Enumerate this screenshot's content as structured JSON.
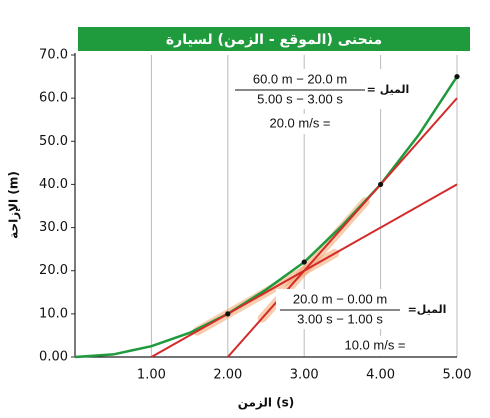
{
  "chart_data": {
    "type": "line",
    "title": "منحنى (الموقع - الزمن) لسيارة",
    "x_label": "الزمن (s)",
    "y_label": "الإزاحة (m)",
    "xlim": [
      0,
      5
    ],
    "ylim": [
      0,
      70
    ],
    "xticks": [
      {
        "value": 1,
        "label": "1.00"
      },
      {
        "value": 2,
        "label": "2.00"
      },
      {
        "value": 3,
        "label": "3.00"
      },
      {
        "value": 4,
        "label": "4.00"
      },
      {
        "value": 5,
        "label": "5.00"
      }
    ],
    "yticks": [
      {
        "value": 0,
        "label": "0.00"
      },
      {
        "value": 10,
        "label": "10.0"
      },
      {
        "value": 20,
        "label": "20.0"
      },
      {
        "value": 30,
        "label": "30.0"
      },
      {
        "value": 40,
        "label": "40.0"
      },
      {
        "value": 50,
        "label": "50.0"
      },
      {
        "value": 60,
        "label": "60.0"
      },
      {
        "value": 70,
        "label": "70.0"
      }
    ],
    "grid": true,
    "curve": {
      "color": "#1f9a3c",
      "x": [
        0,
        0.5,
        1,
        1.5,
        2,
        2.5,
        3,
        3.5,
        4,
        4.5,
        5
      ],
      "y": [
        0,
        0.6,
        2.5,
        5.6,
        10,
        15.6,
        22,
        30.5,
        40,
        51.5,
        65
      ]
    },
    "tangents": [
      {
        "color": "#d42a2a",
        "x": [
          1,
          5
        ],
        "y": [
          0,
          40
        ]
      },
      {
        "color": "#d42a2a",
        "x": [
          2,
          5
        ],
        "y": [
          0,
          60
        ]
      }
    ],
    "points": {
      "x": [
        2,
        3,
        4,
        5
      ],
      "y": [
        10,
        22,
        40,
        65
      ]
    },
    "annotations": [
      {
        "numerator": "60.0 m − 20.0 m",
        "denominator": "5.00 s − 3.00 s",
        "label": "الميل =",
        "result": "20.0 m/s ="
      },
      {
        "numerator": "20.0 m − 0.00 m",
        "denominator": "3.00 s − 1.00 s",
        "label": "الميل=",
        "result": "10.0 m/s ="
      }
    ]
  }
}
